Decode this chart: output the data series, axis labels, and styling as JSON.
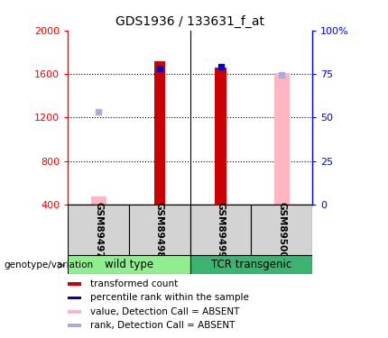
{
  "title": "GDS1936 / 133631_f_at",
  "samples": [
    "GSM89497",
    "GSM89498",
    "GSM89499",
    "GSM89500"
  ],
  "ylim": [
    400,
    2000
  ],
  "yticks": [
    400,
    800,
    1200,
    1600,
    2000
  ],
  "y2ticks": [
    0,
    25,
    50,
    75,
    100
  ],
  "y2labels": [
    "0",
    "25",
    "50",
    "75",
    "100%"
  ],
  "red_bars": [
    null,
    1720,
    1660,
    null
  ],
  "pink_bars": [
    470,
    null,
    null,
    1610
  ],
  "blue_squares": [
    null,
    1650,
    1665,
    null
  ],
  "light_blue_squares": [
    1250,
    null,
    null,
    1590
  ],
  "bar_color_red": "#CC0000",
  "bar_color_pink": "#FFB6C1",
  "dot_color_blue": "#0000CD",
  "dot_color_lightblue": "#AAAADD",
  "baseline": 400,
  "group_wt_color": "#90EE90",
  "group_tcr_color": "#3CB371",
  "sample_box_color": "#D3D3D3",
  "legend_items": [
    {
      "color": "#CC0000",
      "label": "transformed count"
    },
    {
      "color": "#0000CD",
      "label": "percentile rank within the sample"
    },
    {
      "color": "#FFB6C1",
      "label": "value, Detection Call = ABSENT"
    },
    {
      "color": "#AAAADD",
      "label": "rank, Detection Call = ABSENT"
    }
  ]
}
